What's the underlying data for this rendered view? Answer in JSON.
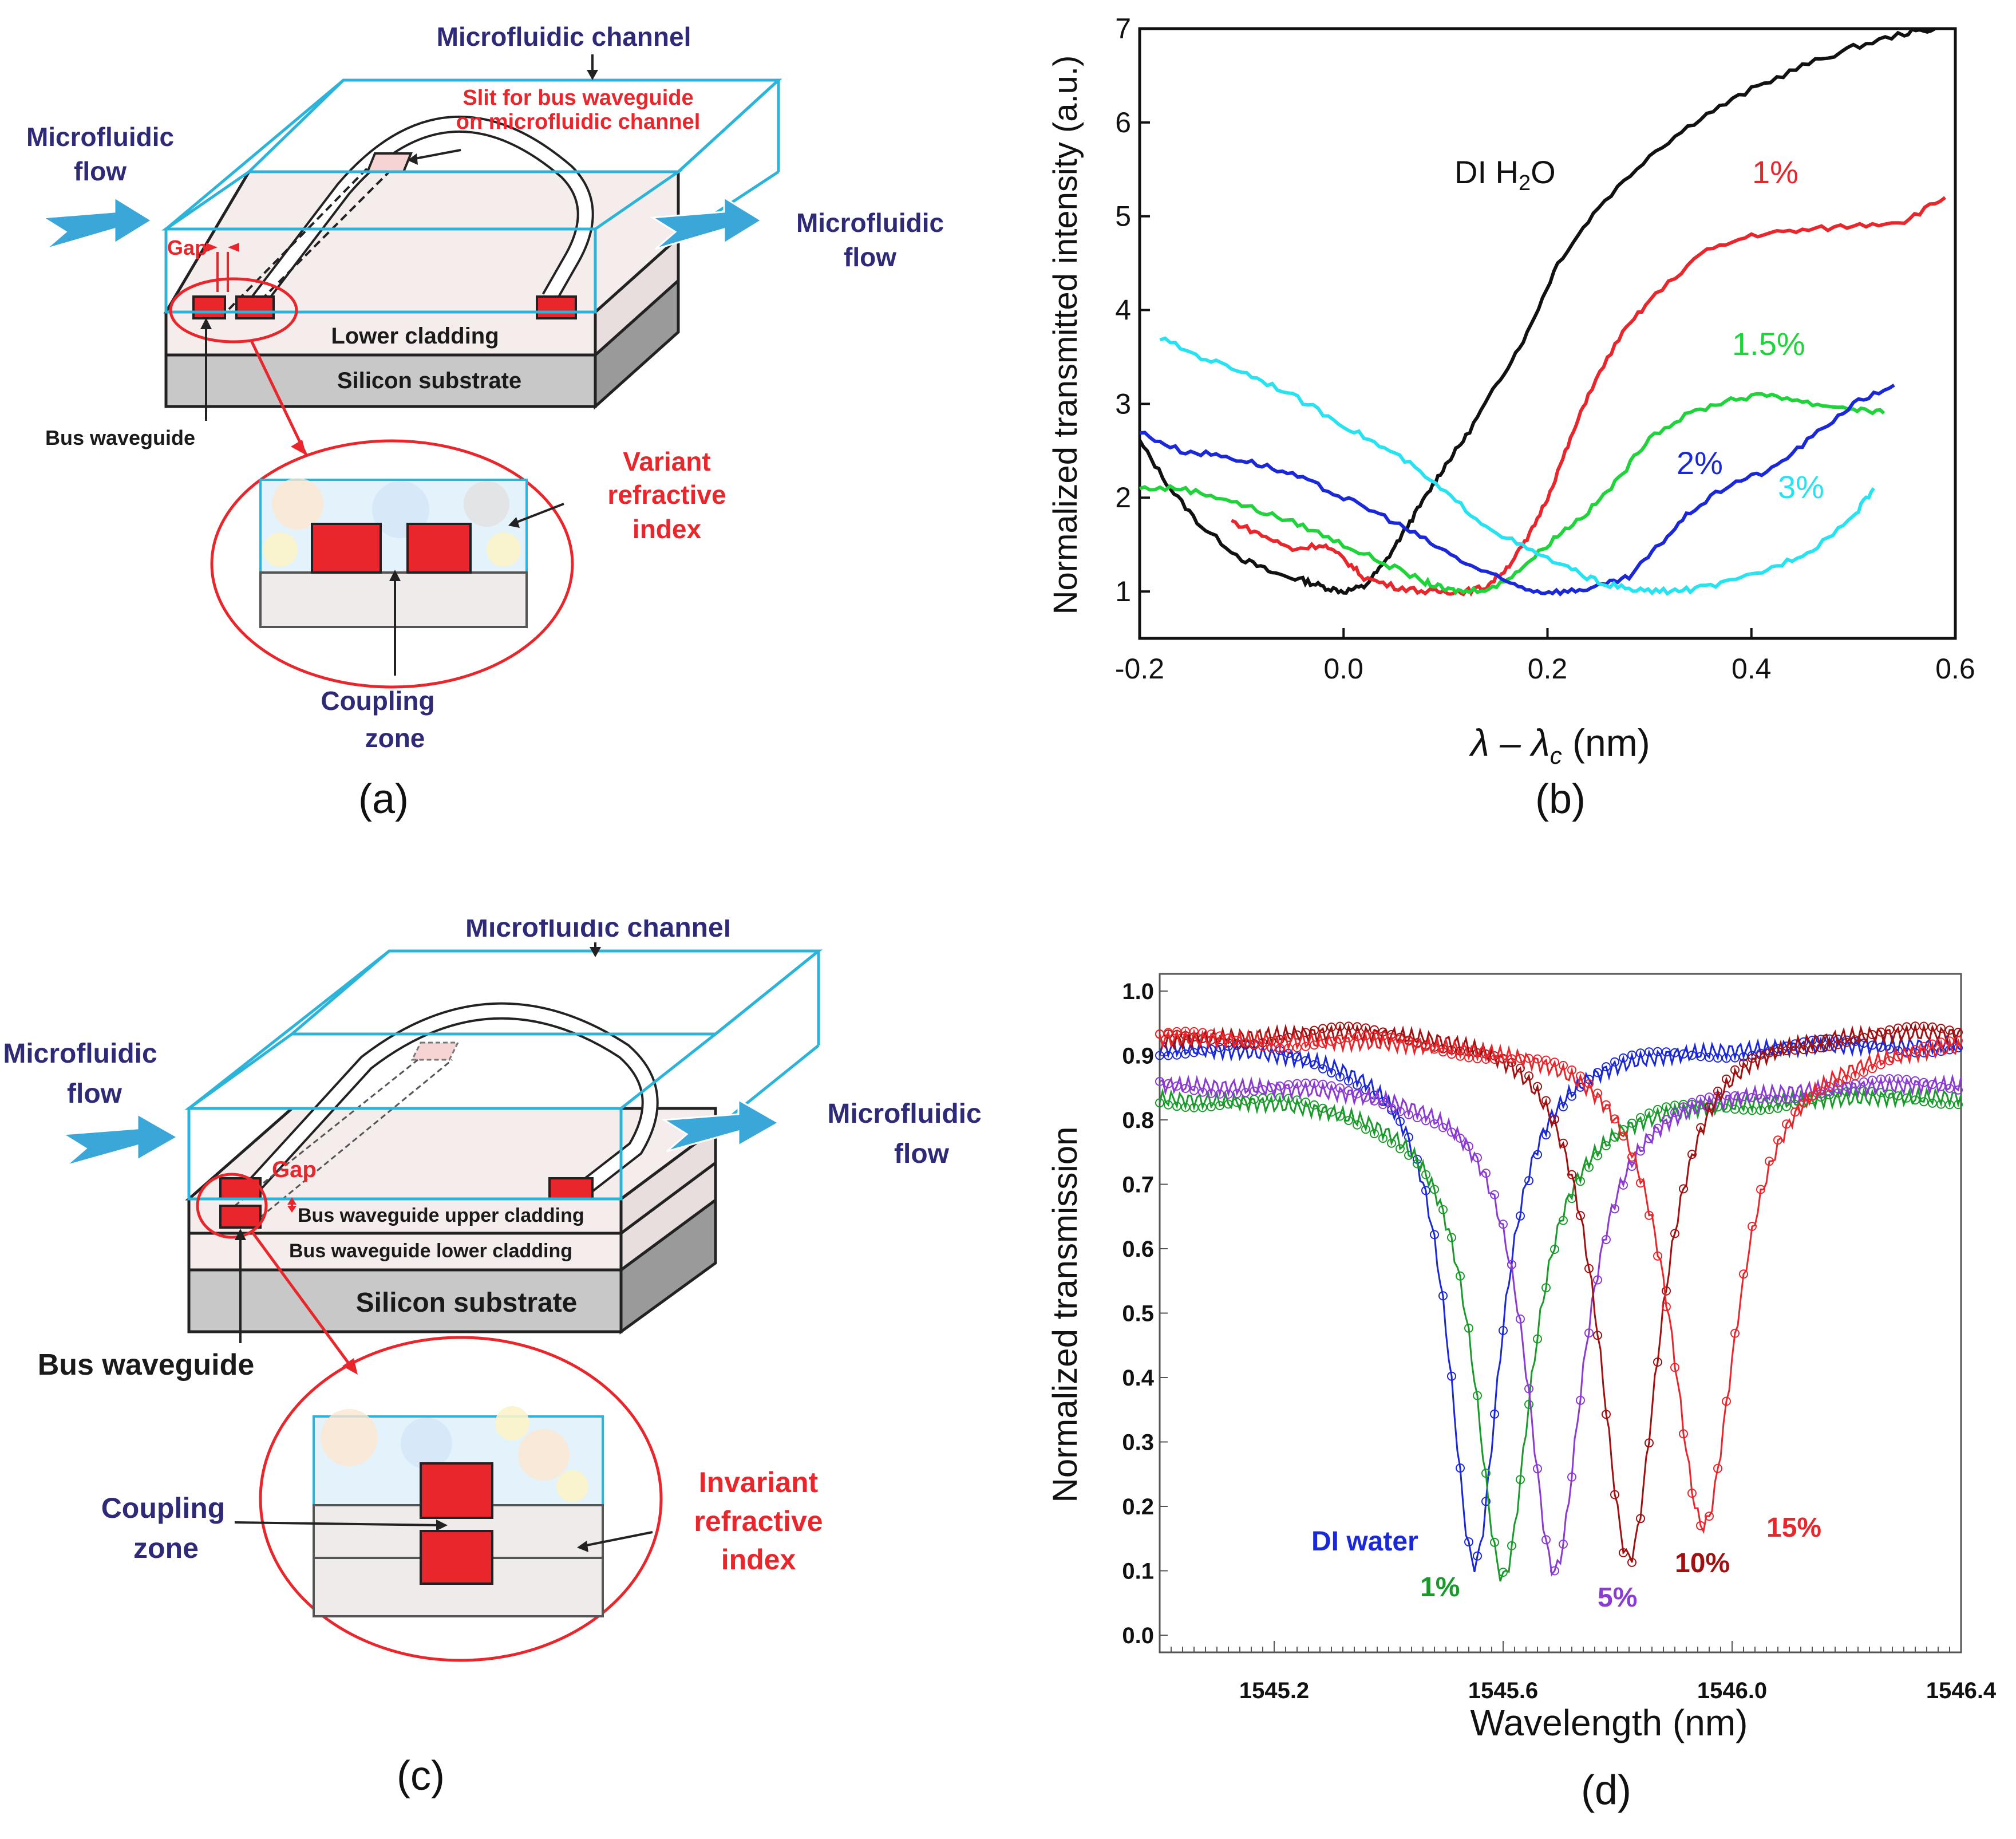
{
  "panel_a": {
    "caption": "(a)",
    "microfluidic_channel": "Microfluidic channel",
    "slit_line1": "Slit for bus waveguide",
    "slit_line2": "on microfluidic channel",
    "flow_left_1": "Microfluidic",
    "flow_left_2": "flow",
    "flow_right_1": "Microfluidic",
    "flow_right_2": "flow",
    "gap": "Gap",
    "lower_cladding": "Lower cladding",
    "substrate": "Silicon substrate",
    "bus_waveguide": "Bus waveguide",
    "variant_1": "Variant",
    "variant_2": "refractive",
    "variant_3": "index",
    "coupling_1": "Coupling",
    "coupling_2": "zone"
  },
  "panel_c": {
    "caption": "(c)",
    "microfluidic_channel": "Microfluidic channel",
    "flow_left_1": "Microfluidic",
    "flow_left_2": "flow",
    "flow_right_1": "Microfluidic",
    "flow_right_2": "flow",
    "gap": "Gap",
    "upper_cladding": "Bus waveguide upper cladding",
    "lower_cladding": "Bus waveguide lower cladding",
    "substrate": "Silicon substrate",
    "bus_waveguide": "Bus waveguide",
    "invariant_1": "Invariant",
    "invariant_2": "refractive",
    "invariant_3": "index",
    "coupling_1": "Coupling",
    "coupling_2": "zone"
  },
  "colors": {
    "channel": "#2bb3d9",
    "waveguide": "#e8262b",
    "label_blue": "#2e2a78",
    "label_red": "#e8262b"
  },
  "chart_data": [
    {
      "type": "line",
      "caption": "(b)",
      "ylabel": "Normalized  transmitted  intensity  (a.u.)",
      "xlabel_prefix": "λ – λ",
      "xlabel_sub": "c",
      "xlabel_suffix": " (nm)",
      "xlim": [
        -0.2,
        0.6
      ],
      "ylim": [
        0.5,
        7
      ],
      "xticks": [
        -0.2,
        0.0,
        0.2,
        0.4,
        0.6
      ],
      "xtick_labels": [
        "-0.2",
        "0.0",
        "0.2",
        "0.4",
        "0.6"
      ],
      "yticks": [
        1,
        2,
        3,
        4,
        5,
        6,
        7
      ],
      "ytick_labels": [
        "1",
        "2",
        "3",
        "4",
        "5",
        "6",
        "7"
      ],
      "series": [
        {
          "name": "DI H2O",
          "label": "DI H",
          "label_sub": "2",
          "label_tail": "O",
          "color": "#111111",
          "x": [
            -0.2,
            -0.17,
            -0.14,
            -0.1,
            -0.07,
            -0.04,
            -0.02,
            0.0,
            0.02,
            0.04,
            0.06,
            0.08,
            0.1,
            0.12,
            0.15,
            0.18,
            0.21,
            0.25,
            0.3,
            0.35,
            0.4,
            0.45,
            0.5,
            0.55,
            0.58
          ],
          "y": [
            2.6,
            2.1,
            1.7,
            1.35,
            1.2,
            1.12,
            1.05,
            1.0,
            1.05,
            1.3,
            1.65,
            2.0,
            2.35,
            2.65,
            3.2,
            3.75,
            4.5,
            5.1,
            5.65,
            6.05,
            6.35,
            6.6,
            6.8,
            6.95,
            7.0
          ]
        },
        {
          "name": "1%",
          "label": "1%",
          "color": "#e8262b",
          "x": [
            -0.11,
            -0.08,
            -0.05,
            -0.02,
            0.0,
            0.02,
            0.05,
            0.08,
            0.1,
            0.12,
            0.14,
            0.16,
            0.18,
            0.2,
            0.22,
            0.24,
            0.27,
            0.3,
            0.35,
            0.4,
            0.45,
            0.5,
            0.55,
            0.59
          ],
          "y": [
            1.75,
            1.6,
            1.45,
            1.5,
            1.35,
            1.15,
            1.05,
            1.0,
            1.0,
            1.0,
            1.05,
            1.25,
            1.55,
            2.0,
            2.55,
            3.1,
            3.7,
            4.1,
            4.6,
            4.8,
            4.85,
            4.9,
            4.95,
            5.2
          ]
        },
        {
          "name": "1.5%",
          "label": "1.5%",
          "color": "#1fd43a",
          "x": [
            -0.2,
            -0.16,
            -0.12,
            -0.08,
            -0.04,
            0.0,
            0.04,
            0.08,
            0.1,
            0.12,
            0.15,
            0.18,
            0.21,
            0.24,
            0.27,
            0.3,
            0.34,
            0.38,
            0.42,
            0.46,
            0.5,
            0.53
          ],
          "y": [
            2.1,
            2.1,
            2.0,
            1.85,
            1.7,
            1.5,
            1.3,
            1.1,
            1.02,
            1.0,
            1.05,
            1.3,
            1.6,
            1.85,
            2.2,
            2.65,
            2.9,
            3.05,
            3.1,
            3.0,
            2.95,
            2.9
          ]
        },
        {
          "name": "2%",
          "label": "2%",
          "color": "#1a28d8",
          "x": [
            -0.2,
            -0.16,
            -0.12,
            -0.08,
            -0.04,
            0.0,
            0.04,
            0.08,
            0.12,
            0.16,
            0.19,
            0.22,
            0.25,
            0.28,
            0.31,
            0.34,
            0.38,
            0.42,
            0.46,
            0.5,
            0.54
          ],
          "y": [
            2.7,
            2.5,
            2.45,
            2.35,
            2.2,
            2.0,
            1.8,
            1.55,
            1.3,
            1.1,
            1.0,
            1.0,
            1.05,
            1.15,
            1.5,
            1.85,
            2.15,
            2.3,
            2.65,
            3.0,
            3.2
          ]
        },
        {
          "name": "3%",
          "label": "3%",
          "color": "#27e2f0",
          "x": [
            -0.18,
            -0.14,
            -0.1,
            -0.06,
            -0.02,
            0.02,
            0.06,
            0.1,
            0.14,
            0.18,
            0.22,
            0.25,
            0.28,
            0.31,
            0.34,
            0.38,
            0.42,
            0.46,
            0.5,
            0.52
          ],
          "y": [
            3.7,
            3.5,
            3.35,
            3.15,
            2.9,
            2.65,
            2.4,
            2.05,
            1.7,
            1.45,
            1.25,
            1.1,
            1.02,
            1.0,
            1.02,
            1.1,
            1.25,
            1.45,
            1.8,
            2.1
          ]
        }
      ]
    },
    {
      "type": "line",
      "caption": "(d)",
      "ylabel": "Normalized  transmission",
      "xlabel": "Wavelength (nm)",
      "xlim": [
        1545.0,
        1546.4
      ],
      "ylim": [
        0.0,
        1.0
      ],
      "xticks": [
        1545.2,
        1545.6,
        1546.0,
        1546.4
      ],
      "xtick_labels": [
        "1545.2",
        "1545.6",
        "1546.0",
        "1546.4"
      ],
      "yticks": [
        0.0,
        0.1,
        0.2,
        0.3,
        0.4,
        0.5,
        0.6,
        0.7,
        0.8,
        0.9,
        1.0
      ],
      "ytick_labels": [
        "0.0",
        "0.1",
        "0.2",
        "0.3",
        "0.4",
        "0.5",
        "0.6",
        "0.7",
        "0.8",
        "0.9",
        "1.0"
      ],
      "series": [
        {
          "name": "DI water",
          "label": "DI water",
          "color": "#1a28d8",
          "dip_x": 1545.55,
          "dip_y": 0.11,
          "baseline": 0.92,
          "width": 0.055
        },
        {
          "name": "1%",
          "label": "1%",
          "color": "#1a9a2a",
          "dip_x": 1545.6,
          "dip_y": 0.09,
          "baseline": 0.84,
          "width": 0.06
        },
        {
          "name": "5%",
          "label": "5%",
          "color": "#8b3bd1",
          "dip_x": 1545.69,
          "dip_y": 0.1,
          "baseline": 0.86,
          "width": 0.06
        },
        {
          "name": "10%",
          "label": "10%",
          "color": "#a01010",
          "dip_x": 1545.82,
          "dip_y": 0.12,
          "baseline": 0.96,
          "width": 0.065
        },
        {
          "name": "15%",
          "label": "15%",
          "color": "#e8262b",
          "dip_x": 1545.95,
          "dip_y": 0.17,
          "baseline": 0.93,
          "width": 0.07
        }
      ]
    }
  ]
}
